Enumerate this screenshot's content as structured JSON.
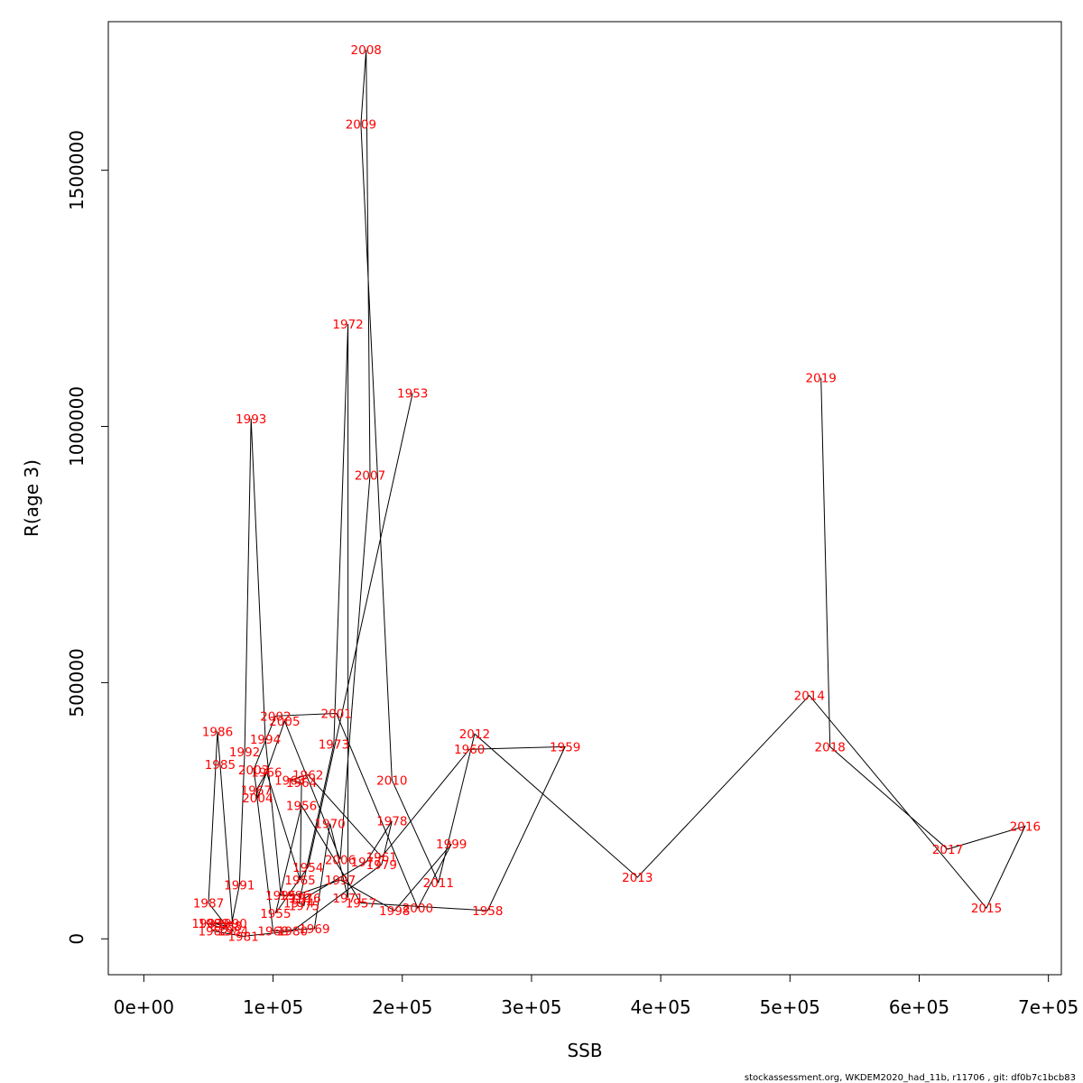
{
  "chart_data": {
    "type": "line",
    "title": "",
    "xlabel": "SSB",
    "ylabel": "R(age 3)",
    "xlim": [
      -27500,
      710000
    ],
    "ylim": [
      -70000,
      1790000
    ],
    "x_ticks": [
      0,
      100000,
      200000,
      300000,
      400000,
      500000,
      600000,
      700000
    ],
    "x_tick_labels": [
      "0e+00",
      "1e+05",
      "2e+05",
      "3e+05",
      "4e+05",
      "5e+05",
      "6e+05",
      "7e+05"
    ],
    "y_ticks": [
      0,
      500000,
      1000000,
      1500000
    ],
    "y_tick_labels": [
      "0",
      "500000",
      "1000000",
      "1500000"
    ],
    "grid": false,
    "legend": "none",
    "line_color": "#000000",
    "label_color": "#ff0000",
    "points": [
      {
        "year": "1953",
        "x": 208000,
        "y": 1065000
      },
      {
        "year": "1954",
        "x": 127000,
        "y": 140000
      },
      {
        "year": "1955",
        "x": 102000,
        "y": 50000
      },
      {
        "year": "1956",
        "x": 122000,
        "y": 260000
      },
      {
        "year": "1957",
        "x": 168000,
        "y": 70000
      },
      {
        "year": "1958",
        "x": 266000,
        "y": 55000
      },
      {
        "year": "1959",
        "x": 326000,
        "y": 375000
      },
      {
        "year": "1960",
        "x": 252000,
        "y": 370000
      },
      {
        "year": "1961",
        "x": 184000,
        "y": 160000
      },
      {
        "year": "1962",
        "x": 127000,
        "y": 320000
      },
      {
        "year": "1963",
        "x": 113000,
        "y": 310000
      },
      {
        "year": "1964",
        "x": 122000,
        "y": 305000
      },
      {
        "year": "1965",
        "x": 121000,
        "y": 115000
      },
      {
        "year": "1966",
        "x": 95000,
        "y": 325000
      },
      {
        "year": "1967",
        "x": 87000,
        "y": 290000
      },
      {
        "year": "1968",
        "x": 100000,
        "y": 15000
      },
      {
        "year": "1969",
        "x": 132000,
        "y": 20000
      },
      {
        "year": "1970",
        "x": 144000,
        "y": 225000
      },
      {
        "year": "1971",
        "x": 158000,
        "y": 80000
      },
      {
        "year": "1972",
        "x": 158000,
        "y": 1200000
      },
      {
        "year": "1973",
        "x": 147000,
        "y": 380000
      },
      {
        "year": "1974",
        "x": 120000,
        "y": 70000
      },
      {
        "year": "1975",
        "x": 124000,
        "y": 65000
      },
      {
        "year": "1976",
        "x": 125000,
        "y": 80000
      },
      {
        "year": "1977",
        "x": 172000,
        "y": 150000
      },
      {
        "year": "1978",
        "x": 192000,
        "y": 230000
      },
      {
        "year": "1979",
        "x": 184000,
        "y": 145000
      },
      {
        "year": "1980",
        "x": 115000,
        "y": 15000
      },
      {
        "year": "1981",
        "x": 77000,
        "y": 5000
      },
      {
        "year": "1982",
        "x": 54000,
        "y": 15000
      },
      {
        "year": "1983",
        "x": 49000,
        "y": 30000
      },
      {
        "year": "1984",
        "x": 69000,
        "y": 15000
      },
      {
        "year": "1985",
        "x": 59000,
        "y": 340000
      },
      {
        "year": "1986",
        "x": 57000,
        "y": 405000
      },
      {
        "year": "1987",
        "x": 50000,
        "y": 70000
      },
      {
        "year": "1988",
        "x": 64000,
        "y": 25000
      },
      {
        "year": "1989",
        "x": 54000,
        "y": 30000
      },
      {
        "year": "1990",
        "x": 68000,
        "y": 30000
      },
      {
        "year": "1991",
        "x": 74000,
        "y": 105000
      },
      {
        "year": "1992",
        "x": 78000,
        "y": 365000
      },
      {
        "year": "1993",
        "x": 83000,
        "y": 1015000
      },
      {
        "year": "1994",
        "x": 94000,
        "y": 390000
      },
      {
        "year": "1995",
        "x": 106000,
        "y": 85000
      },
      {
        "year": "1996",
        "x": 117000,
        "y": 85000
      },
      {
        "year": "1997",
        "x": 152000,
        "y": 115000
      },
      {
        "year": "1998",
        "x": 194000,
        "y": 55000
      },
      {
        "year": "1999",
        "x": 238000,
        "y": 185000
      },
      {
        "year": "2000",
        "x": 212000,
        "y": 60000
      },
      {
        "year": "2001",
        "x": 149000,
        "y": 440000
      },
      {
        "year": "2002",
        "x": 102000,
        "y": 435000
      },
      {
        "year": "2003",
        "x": 85000,
        "y": 330000
      },
      {
        "year": "2004",
        "x": 88000,
        "y": 275000
      },
      {
        "year": "2005",
        "x": 109000,
        "y": 425000
      },
      {
        "year": "2006",
        "x": 152000,
        "y": 155000
      },
      {
        "year": "2007",
        "x": 175000,
        "y": 905000
      },
      {
        "year": "2008",
        "x": 172000,
        "y": 1735000
      },
      {
        "year": "2009",
        "x": 168000,
        "y": 1590000
      },
      {
        "year": "2010",
        "x": 192000,
        "y": 310000
      },
      {
        "year": "2011",
        "x": 228000,
        "y": 110000
      },
      {
        "year": "2012",
        "x": 256000,
        "y": 400000
      },
      {
        "year": "2013",
        "x": 382000,
        "y": 120000
      },
      {
        "year": "2014",
        "x": 515000,
        "y": 475000
      },
      {
        "year": "2015",
        "x": 652000,
        "y": 60000
      },
      {
        "year": "2016",
        "x": 682000,
        "y": 220000
      },
      {
        "year": "2017",
        "x": 622000,
        "y": 175000
      },
      {
        "year": "2018",
        "x": 531000,
        "y": 375000
      },
      {
        "year": "2019",
        "x": 524000,
        "y": 1095000
      }
    ]
  },
  "footer": {
    "text": "stockassessment.org, WKDEM2020_had_11b, r11706 , git: df0b7c1bcb83"
  }
}
